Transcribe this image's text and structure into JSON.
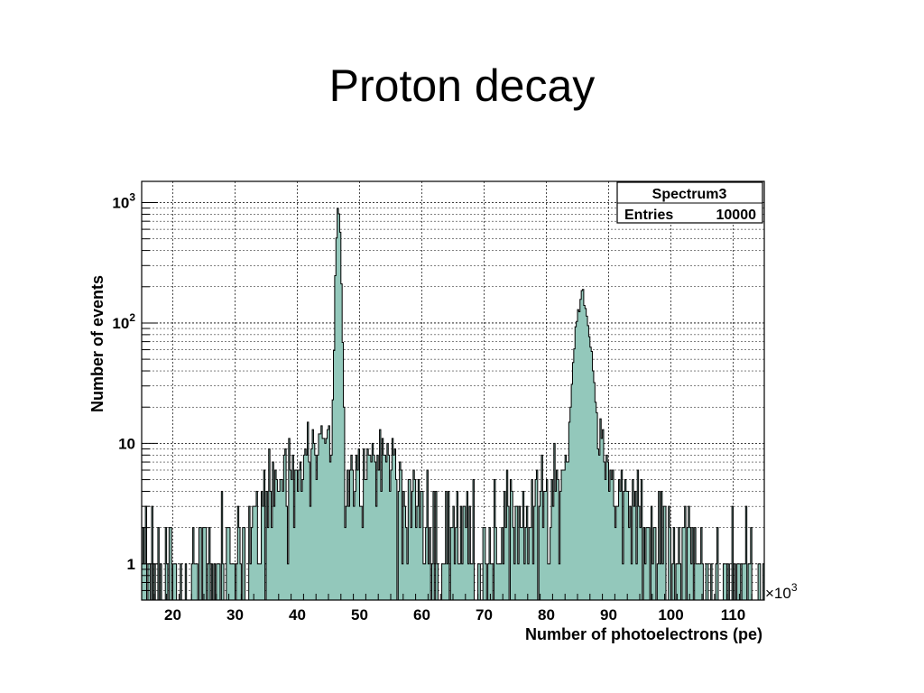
{
  "slide": {
    "title": "Proton decay"
  },
  "chart_data": {
    "type": "histogram",
    "xlabel": "Number of photoelectrons (pe)",
    "ylabel": "Number of events",
    "x_multiplier": "×10",
    "x_multiplier_exp": "3",
    "xlim": [
      15,
      115
    ],
    "ylim": [
      0.5,
      1500
    ],
    "log_y": true,
    "grid": true,
    "x_ticks": [
      20,
      30,
      40,
      50,
      60,
      70,
      80,
      90,
      100,
      110
    ],
    "x_tick_labels": [
      "20",
      "30",
      "40",
      "50",
      "60",
      "70",
      "80",
      "90",
      "100",
      "110"
    ],
    "y_ticks": [
      1,
      10,
      100,
      1000
    ],
    "y_tick_labels": [
      {
        "base": "1",
        "exp": ""
      },
      {
        "base": "10",
        "exp": ""
      },
      {
        "base": "10",
        "exp": "2"
      },
      {
        "base": "10",
        "exp": "3"
      }
    ],
    "fill_color": "#93c8bb",
    "line_color": "#000000",
    "legend": {
      "name": "Spectrum3",
      "entries_label": "Entries",
      "entries_value": "10000",
      "position": "top-right"
    },
    "peaks": [
      {
        "center": 46.6,
        "height": 880,
        "sigma": 0.3
      },
      {
        "center": 85.8,
        "height": 160,
        "sigma": 0.9
      }
    ],
    "continuum": [
      [
        15,
        0.7
      ],
      [
        20,
        0.8
      ],
      [
        25,
        0.9
      ],
      [
        30,
        1.2
      ],
      [
        33,
        2
      ],
      [
        35,
        3
      ],
      [
        38,
        5
      ],
      [
        41,
        8
      ],
      [
        44,
        10
      ],
      [
        46,
        8
      ],
      [
        48,
        6
      ],
      [
        50,
        7
      ],
      [
        52,
        8
      ],
      [
        55,
        7
      ],
      [
        57,
        4
      ],
      [
        60,
        2.5
      ],
      [
        65,
        2
      ],
      [
        70,
        2
      ],
      [
        75,
        2.5
      ],
      [
        80,
        3
      ],
      [
        82,
        4
      ],
      [
        84,
        6
      ],
      [
        88,
        12
      ],
      [
        90,
        6
      ],
      [
        92,
        3
      ],
      [
        95,
        2
      ],
      [
        100,
        1.5
      ],
      [
        105,
        1
      ],
      [
        110,
        0.7
      ],
      [
        115,
        0.5
      ]
    ]
  }
}
